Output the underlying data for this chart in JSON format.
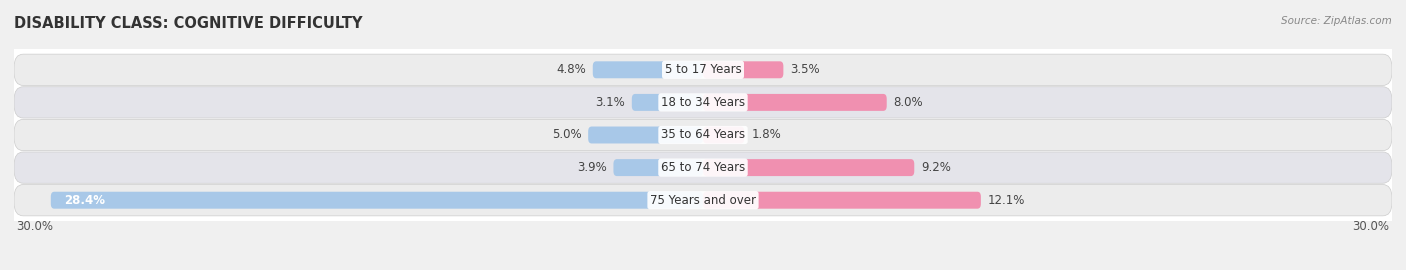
{
  "title": "DISABILITY CLASS: COGNITIVE DIFFICULTY",
  "source": "Source: ZipAtlas.com",
  "categories": [
    "5 to 17 Years",
    "18 to 34 Years",
    "35 to 64 Years",
    "65 to 74 Years",
    "75 Years and over"
  ],
  "male_values": [
    4.8,
    3.1,
    5.0,
    3.9,
    28.4
  ],
  "female_values": [
    3.5,
    8.0,
    1.8,
    9.2,
    12.1
  ],
  "max_val": 30.0,
  "male_color": "#a8c8e8",
  "female_color": "#f090b0",
  "male_light": "#c0d8f0",
  "female_light": "#f8b8cc",
  "row_bg_light": "#efefef",
  "row_bg_dark": "#e2e2e8",
  "label_fontsize": 8.5,
  "title_fontsize": 10.5,
  "bar_height": 0.52,
  "legend_fontsize": 9
}
